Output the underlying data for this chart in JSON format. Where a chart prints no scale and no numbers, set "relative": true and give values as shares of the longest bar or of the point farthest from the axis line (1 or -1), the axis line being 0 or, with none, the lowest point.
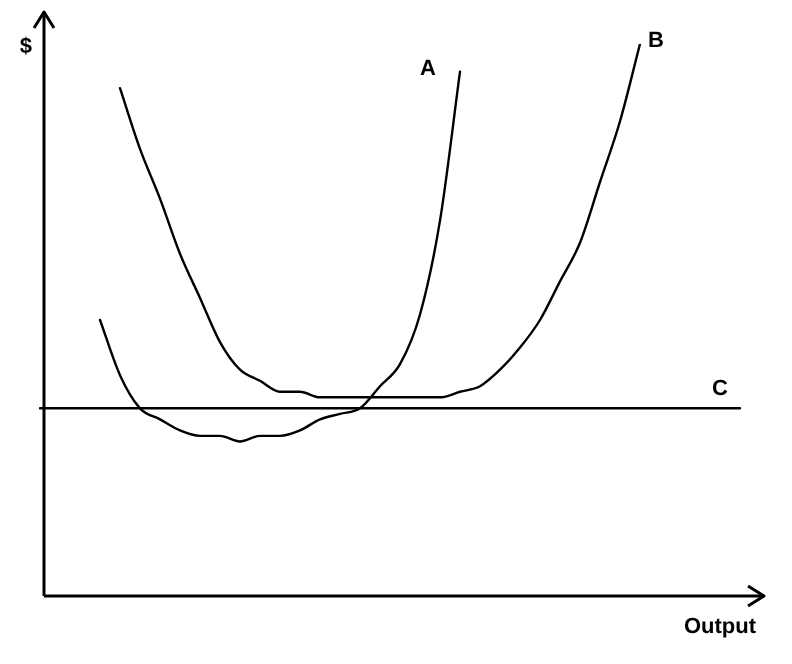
{
  "chart_data": {
    "type": "line",
    "relative": true,
    "xlabel": "Output",
    "ylabel": "$",
    "legend": false,
    "marker": "none",
    "line_style": "solid",
    "categories": [
      null,
      null,
      null,
      null,
      null,
      null,
      null,
      null,
      null,
      null,
      null,
      null,
      null,
      null,
      null,
      null,
      null,
      null,
      null,
      null,
      null,
      null,
      null,
      null,
      null,
      null,
      null,
      null,
      null,
      null,
      null,
      null,
      null,
      null,
      null,
      null
    ],
    "series": [
      {
        "name": "A",
        "color": "#000000",
        "values": [
          null,
          null,
          null,
          0.5,
          0.4,
          0.34,
          0.32,
          0.3,
          0.29,
          0.29,
          0.28,
          0.29,
          0.29,
          0.3,
          0.32,
          0.33,
          0.34,
          0.38,
          0.42,
          0.51,
          0.68,
          0.95,
          null,
          null,
          null,
          null,
          null,
          null,
          null,
          null,
          null,
          null,
          null,
          null,
          null,
          null
        ]
      },
      {
        "name": "B",
        "color": "#000000",
        "values": [
          null,
          null,
          null,
          null,
          0.92,
          0.81,
          0.72,
          0.62,
          0.54,
          0.46,
          0.41,
          0.39,
          0.37,
          0.37,
          0.36,
          0.36,
          0.36,
          0.36,
          0.36,
          0.36,
          0.36,
          0.37,
          0.38,
          0.41,
          0.45,
          0.5,
          0.57,
          0.64,
          0.75,
          0.86,
          1,
          null,
          null,
          null,
          null,
          null
        ]
      },
      {
        "name": "C",
        "color": "#000000",
        "values": [
          0.34,
          0.34,
          0.34,
          0.34,
          0.34,
          0.34,
          0.34,
          0.34,
          0.34,
          0.34,
          0.34,
          0.34,
          0.34,
          0.34,
          0.34,
          0.34,
          0.34,
          0.34,
          0.34,
          0.34,
          0.34,
          0.34,
          0.34,
          0.34,
          0.34,
          0.34,
          0.34,
          0.34,
          0.34,
          0.34,
          0.34,
          0.34,
          0.34,
          0.34,
          0.34,
          0.34
        ]
      }
    ]
  }
}
